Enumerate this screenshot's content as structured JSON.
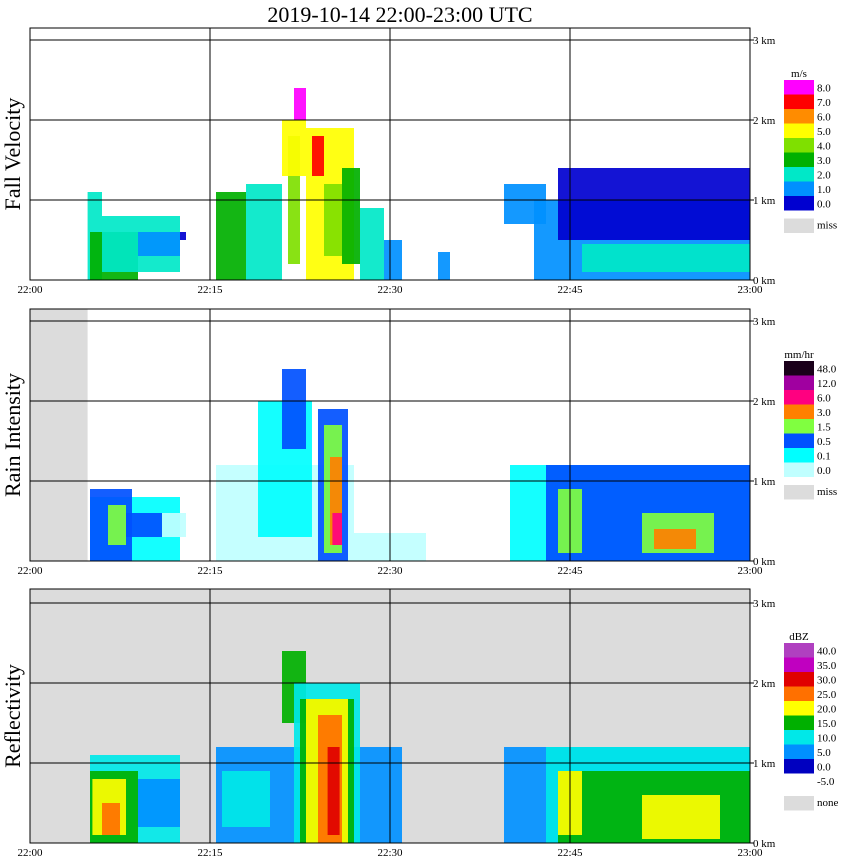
{
  "chart_data": {
    "type": "heatmap",
    "title": "2019-10-14   22:00-23:00 UTC",
    "xlim_minutes": [
      0,
      60
    ],
    "ylim_km": [
      0,
      3.0
    ],
    "x_ticks": [
      {
        "label": "22:00",
        "minute": 0
      },
      {
        "label": "22:15",
        "minute": 15
      },
      {
        "label": "22:30",
        "minute": 30
      },
      {
        "label": "22:45",
        "minute": 45
      },
      {
        "label": "23:00",
        "minute": 60
      }
    ],
    "y_ticks": [
      {
        "label": "0 km",
        "km": 0
      },
      {
        "label": "1 km",
        "km": 1
      },
      {
        "label": "2 km",
        "km": 2
      },
      {
        "label": "3 km",
        "km": 3
      }
    ],
    "panels": [
      {
        "id": "fall-velocity",
        "ylabel": "Fall Velocity",
        "unit": "m/s",
        "miss_label": "miss",
        "miss_color": "#dcdcdc",
        "legend": [
          {
            "label": "8.0",
            "color": "#ff00ff"
          },
          {
            "label": "7.0",
            "color": "#ff0000"
          },
          {
            "label": "6.0",
            "color": "#ff8c00"
          },
          {
            "label": "5.0",
            "color": "#ffff00"
          },
          {
            "label": "4.0",
            "color": "#7fe000"
          },
          {
            "label": "3.0",
            "color": "#00b000"
          },
          {
            "label": "2.0",
            "color": "#00e8c8"
          },
          {
            "label": "1.0",
            "color": "#0090ff"
          },
          {
            "label": "0.0",
            "color": "#0000d0"
          }
        ],
        "background_missing_from_minute": null,
        "cells": [
          {
            "t0": 4.8,
            "t1": 6.0,
            "h0": 0,
            "h1": 1.1,
            "c": 6
          },
          {
            "t0": 5.0,
            "t1": 9.0,
            "h0": 0,
            "h1": 0.6,
            "c": 5
          },
          {
            "t0": 6.0,
            "t1": 12.5,
            "h0": 0.1,
            "h1": 0.8,
            "c": 6
          },
          {
            "t0": 9.0,
            "t1": 12.5,
            "h0": 0.3,
            "h1": 0.6,
            "c": 7
          },
          {
            "t0": 12.5,
            "t1": 13.0,
            "h0": 0.5,
            "h1": 0.6,
            "c": 8
          },
          {
            "t0": 15.5,
            "t1": 18.0,
            "h0": 0,
            "h1": 1.1,
            "c": 5
          },
          {
            "t0": 18.0,
            "t1": 21.0,
            "h0": 0,
            "h1": 1.2,
            "c": 6
          },
          {
            "t0": 21.5,
            "t1": 22.5,
            "h0": 0.2,
            "h1": 1.8,
            "c": 4
          },
          {
            "t0": 21.0,
            "t1": 23.0,
            "h0": 1.3,
            "h1": 2.0,
            "c": 3
          },
          {
            "t0": 22.0,
            "t1": 23.0,
            "h0": 2.0,
            "h1": 2.4,
            "c": 0
          },
          {
            "t0": 23.0,
            "t1": 27.0,
            "h0": 0,
            "h1": 1.9,
            "c": 3
          },
          {
            "t0": 23.5,
            "t1": 24.5,
            "h0": 1.3,
            "h1": 1.8,
            "c": 1
          },
          {
            "t0": 24.5,
            "t1": 26.0,
            "h0": 0.3,
            "h1": 1.2,
            "c": 4
          },
          {
            "t0": 26.0,
            "t1": 27.5,
            "h0": 0.2,
            "h1": 1.4,
            "c": 5
          },
          {
            "t0": 27.5,
            "t1": 29.5,
            "h0": 0,
            "h1": 0.9,
            "c": 6
          },
          {
            "t0": 29.5,
            "t1": 31.0,
            "h0": 0,
            "h1": 0.5,
            "c": 7
          },
          {
            "t0": 34.0,
            "t1": 35.0,
            "h0": 0,
            "h1": 0.35,
            "c": 7
          },
          {
            "t0": 39.5,
            "t1": 43.0,
            "h0": 0.7,
            "h1": 1.2,
            "c": 7
          },
          {
            "t0": 42.0,
            "t1": 60.0,
            "h0": 0,
            "h1": 1.0,
            "c": 7
          },
          {
            "t0": 44.0,
            "t1": 60.0,
            "h0": 0.5,
            "h1": 1.4,
            "c": 8
          },
          {
            "t0": 46.0,
            "t1": 60.0,
            "h0": 0.1,
            "h1": 0.45,
            "c": 6
          }
        ]
      },
      {
        "id": "rain-intensity",
        "ylabel": "Rain Intensity",
        "unit": "mm/hr",
        "miss_label": "miss",
        "miss_color": "#dcdcdc",
        "legend": [
          {
            "label": "48.0",
            "color": "#1a001a"
          },
          {
            "label": "12.0",
            "color": "#a000a0"
          },
          {
            "label": "6.0",
            "color": "#ff0080"
          },
          {
            "label": "3.0",
            "color": "#ff8000"
          },
          {
            "label": "1.5",
            "color": "#80ff40"
          },
          {
            "label": "0.5",
            "color": "#0050ff"
          },
          {
            "label": "0.1",
            "color": "#00ffff"
          },
          {
            "label": "0.0",
            "color": "#c0ffff"
          }
        ],
        "background_missing_from_minute": 4.8,
        "cells": [
          {
            "t0": 5.0,
            "t1": 12.5,
            "h0": 0,
            "h1": 0.8,
            "c": 6
          },
          {
            "t0": 5.0,
            "t1": 8.5,
            "h0": 0,
            "h1": 0.9,
            "c": 5
          },
          {
            "t0": 6.5,
            "t1": 8.0,
            "h0": 0.2,
            "h1": 0.7,
            "c": 4
          },
          {
            "t0": 8.0,
            "t1": 11.0,
            "h0": 0.3,
            "h1": 0.6,
            "c": 5
          },
          {
            "t0": 11.0,
            "t1": 13.0,
            "h0": 0.3,
            "h1": 0.6,
            "c": 7
          },
          {
            "t0": 15.5,
            "t1": 27.0,
            "h0": 0,
            "h1": 1.2,
            "c": 7
          },
          {
            "t0": 19.0,
            "t1": 23.5,
            "h0": 0.3,
            "h1": 2.0,
            "c": 6
          },
          {
            "t0": 21.0,
            "t1": 23.0,
            "h0": 1.4,
            "h1": 2.4,
            "c": 5
          },
          {
            "t0": 24.0,
            "t1": 26.5,
            "h0": 0,
            "h1": 1.9,
            "c": 5
          },
          {
            "t0": 24.5,
            "t1": 26.0,
            "h0": 0.1,
            "h1": 1.7,
            "c": 4
          },
          {
            "t0": 25.0,
            "t1": 26.0,
            "h0": 0.2,
            "h1": 1.3,
            "c": 3
          },
          {
            "t0": 25.2,
            "t1": 26.0,
            "h0": 0.2,
            "h1": 0.6,
            "c": 2
          },
          {
            "t0": 27.0,
            "t1": 33.0,
            "h0": 0,
            "h1": 0.35,
            "c": 7
          },
          {
            "t0": 40.0,
            "t1": 60.0,
            "h0": 0,
            "h1": 1.2,
            "c": 6
          },
          {
            "t0": 43.0,
            "t1": 60.0,
            "h0": 0,
            "h1": 1.2,
            "c": 5
          },
          {
            "t0": 44.0,
            "t1": 46.0,
            "h0": 0.1,
            "h1": 0.9,
            "c": 4
          },
          {
            "t0": 51.0,
            "t1": 57.0,
            "h0": 0.1,
            "h1": 0.6,
            "c": 4
          },
          {
            "t0": 52.0,
            "t1": 55.5,
            "h0": 0.15,
            "h1": 0.4,
            "c": 3
          }
        ]
      },
      {
        "id": "reflectivity",
        "ylabel": "Reflectivity",
        "unit": "dBZ",
        "miss_label": "none",
        "miss_color": "#dcdcdc",
        "legend": [
          {
            "label": "40.0",
            "color": "#b040c0"
          },
          {
            "label": "35.0",
            "color": "#c000c0"
          },
          {
            "label": "30.0",
            "color": "#e00000"
          },
          {
            "label": "25.0",
            "color": "#ff7000"
          },
          {
            "label": "20.0",
            "color": "#ffff00"
          },
          {
            "label": "15.0",
            "color": "#00b000"
          },
          {
            "label": "10.0",
            "color": "#00e8e8"
          },
          {
            "label": "5.0",
            "color": "#0090ff"
          },
          {
            "label": "0.0",
            "color": "#0000c0"
          },
          {
            "label": "-5.0",
            "color": "#ffffff"
          }
        ],
        "background_missing_from_minute": 0,
        "cells": [
          {
            "t0": 5.0,
            "t1": 12.5,
            "h0": 0,
            "h1": 1.1,
            "c": 6
          },
          {
            "t0": 5.0,
            "t1": 9.0,
            "h0": 0,
            "h1": 0.9,
            "c": 5
          },
          {
            "t0": 5.2,
            "t1": 8.0,
            "h0": 0.1,
            "h1": 0.8,
            "c": 4
          },
          {
            "t0": 6.0,
            "t1": 7.5,
            "h0": 0.1,
            "h1": 0.5,
            "c": 3
          },
          {
            "t0": 9.0,
            "t1": 12.5,
            "h0": 0.2,
            "h1": 0.8,
            "c": 7
          },
          {
            "t0": 15.5,
            "t1": 31.0,
            "h0": 0,
            "h1": 1.2,
            "c": 7
          },
          {
            "t0": 16.0,
            "t1": 20.0,
            "h0": 0.2,
            "h1": 0.9,
            "c": 6
          },
          {
            "t0": 21.0,
            "t1": 23.0,
            "h0": 1.5,
            "h1": 2.4,
            "c": 5
          },
          {
            "t0": 22.0,
            "t1": 27.5,
            "h0": 0,
            "h1": 2.0,
            "c": 6
          },
          {
            "t0": 22.5,
            "t1": 27.0,
            "h0": 0,
            "h1": 1.8,
            "c": 5
          },
          {
            "t0": 23.0,
            "t1": 26.5,
            "h0": 0,
            "h1": 1.8,
            "c": 4
          },
          {
            "t0": 24.0,
            "t1": 26.0,
            "h0": 0,
            "h1": 1.6,
            "c": 3
          },
          {
            "t0": 24.8,
            "t1": 25.8,
            "h0": 0.1,
            "h1": 1.2,
            "c": 2
          },
          {
            "t0": 39.5,
            "t1": 60.0,
            "h0": 0,
            "h1": 1.2,
            "c": 7
          },
          {
            "t0": 43.0,
            "t1": 60.0,
            "h0": 0,
            "h1": 1.2,
            "c": 6
          },
          {
            "t0": 44.0,
            "t1": 60.0,
            "h0": 0,
            "h1": 0.9,
            "c": 5
          },
          {
            "t0": 44.0,
            "t1": 46.0,
            "h0": 0.1,
            "h1": 0.9,
            "c": 4
          },
          {
            "t0": 51.0,
            "t1": 57.5,
            "h0": 0.05,
            "h1": 0.6,
            "c": 4
          }
        ]
      }
    ]
  }
}
